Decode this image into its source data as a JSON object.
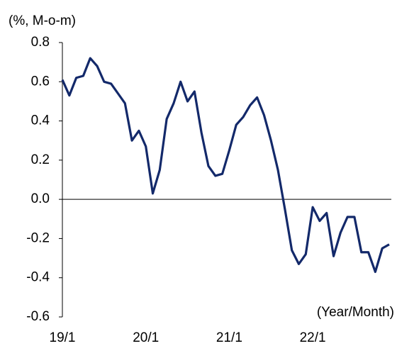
{
  "chart_data": {
    "type": "line",
    "y_label": "(%, M-o-m)",
    "x_label": "(Year/Month)",
    "categories": [
      "19/1",
      null,
      null,
      null,
      null,
      null,
      null,
      null,
      null,
      null,
      null,
      null,
      "20/1",
      null,
      null,
      null,
      null,
      null,
      null,
      null,
      null,
      null,
      null,
      null,
      "21/1",
      null,
      null,
      null,
      null,
      null,
      null,
      null,
      null,
      null,
      null,
      null,
      "22/1",
      null,
      null,
      null,
      null,
      null,
      null,
      null,
      null,
      null,
      null,
      null
    ],
    "series": [
      {
        "color": "#13296a",
        "values": [
          0.61,
          0.53,
          0.62,
          0.63,
          0.72,
          0.68,
          0.6,
          0.59,
          0.54,
          0.49,
          0.3,
          0.35,
          0.27,
          0.03,
          0.15,
          0.41,
          0.49,
          0.6,
          0.5,
          0.55,
          0.34,
          0.17,
          0.12,
          0.13,
          0.25,
          0.38,
          0.42,
          0.48,
          0.52,
          0.43,
          0.3,
          0.15,
          -0.05,
          -0.26,
          -0.33,
          -0.28,
          -0.04,
          -0.11,
          -0.07,
          -0.29,
          -0.17,
          -0.09,
          -0.09,
          -0.27,
          -0.27,
          -0.37,
          -0.25,
          -0.23
        ]
      }
    ],
    "ylim": [
      -0.6,
      0.8
    ],
    "yticks": [
      0.8,
      0.6,
      0.4,
      0.2,
      {
        "value": 0,
        "label": "0.0"
      },
      -0.2,
      -0.4,
      -0.6
    ]
  }
}
